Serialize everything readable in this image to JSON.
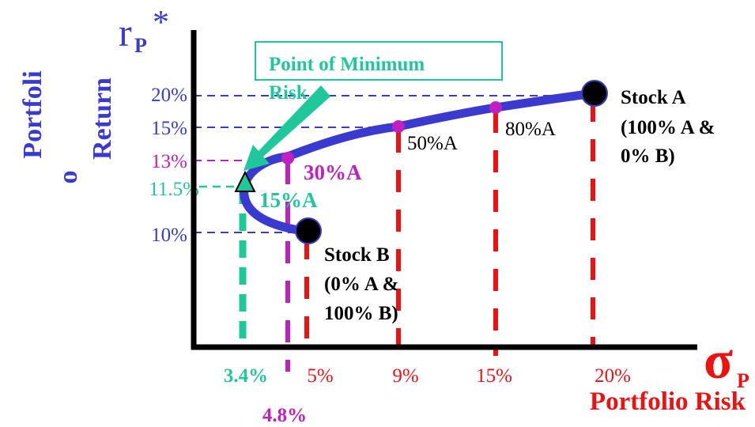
{
  "colors": {
    "curve": "#3a3ad0",
    "blue_text": "#3a3ad0",
    "green": "#1fc89a",
    "magenta": "#c020c0",
    "red": "#ee1111",
    "black": "#000000"
  },
  "y_title": {
    "symbol": "r",
    "sub": "P",
    "star": "*",
    "line_a1": "Portfoli",
    "line_a2": "o",
    "line_b": "Return"
  },
  "x_title": {
    "symbol": "σ",
    "sub": "P",
    "label": "Portfolio Risk"
  },
  "callout": {
    "line1": "Point of Minimum",
    "line2": "Risk"
  },
  "chart_data": {
    "type": "line",
    "x_ticks": [
      "3.4%",
      "4.8%",
      "5%",
      "9%",
      "15%",
      "20%"
    ],
    "y_ticks": [
      "20%",
      "15%",
      "13%",
      "11.5%",
      "10%"
    ],
    "frontier": [
      {
        "x": 5,
        "y": 10
      },
      {
        "x": 3.4,
        "y": 11.5
      },
      {
        "x": 4.8,
        "y": 13
      },
      {
        "x": 9,
        "y": 15
      },
      {
        "x": 15,
        "y": 17.8
      },
      {
        "x": 20,
        "y": 20
      }
    ],
    "points": [
      {
        "name": "stock_a",
        "x": 20,
        "y": 20,
        "kind": "large",
        "color": "black"
      },
      {
        "name": "stock_b",
        "x": 5,
        "y": 10,
        "kind": "large",
        "color": "black"
      },
      {
        "name": "p30",
        "x": 4.8,
        "y": 13,
        "kind": "small",
        "color": "magenta"
      },
      {
        "name": "p50",
        "x": 9,
        "y": 15,
        "kind": "small",
        "color": "magenta"
      },
      {
        "name": "p80",
        "x": 15,
        "y": 17.8,
        "kind": "small",
        "color": "magenta"
      },
      {
        "name": "min_risk",
        "x": 3.4,
        "y": 11.5,
        "kind": "triangle",
        "color": "green"
      }
    ],
    "labels": {
      "stock_a": [
        "Stock  A",
        "(100% A &",
        "0% B)"
      ],
      "stock_b": [
        "Stock  B",
        "(0% A &",
        "100% B)"
      ],
      "p30": "30%A",
      "p15": "15%A",
      "p50": "50%A",
      "p80": "80%A"
    }
  }
}
